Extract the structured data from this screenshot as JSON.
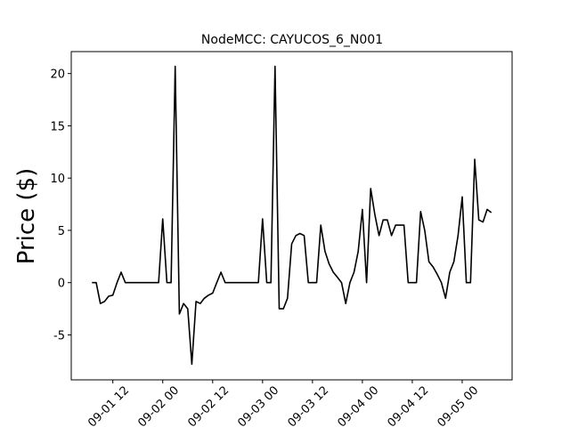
{
  "chart_data": {
    "type": "line",
    "title": "NodeMCC: CAYUCOS_6_N001",
    "y_label": "Price ($)",
    "x": [
      "09-01 07",
      "09-01 08",
      "09-01 09",
      "09-01 10",
      "09-01 11",
      "09-01 12",
      "09-01 13",
      "09-01 14",
      "09-01 15",
      "09-01 16",
      "09-01 17",
      "09-01 18",
      "09-01 19",
      "09-01 20",
      "09-01 21",
      "09-01 22",
      "09-01 23",
      "09-02 00",
      "09-02 01",
      "09-02 02",
      "09-02 03",
      "09-02 04",
      "09-02 05",
      "09-02 06",
      "09-02 07",
      "09-02 08",
      "09-02 09",
      "09-02 10",
      "09-02 11",
      "09-02 12",
      "09-02 13",
      "09-02 14",
      "09-02 15",
      "09-02 16",
      "09-02 17",
      "09-02 18",
      "09-02 19",
      "09-02 20",
      "09-02 21",
      "09-02 22",
      "09-02 23",
      "09-03 00",
      "09-03 01",
      "09-03 02",
      "09-03 03",
      "09-03 04",
      "09-03 05",
      "09-03 06",
      "09-03 07",
      "09-03 08",
      "09-03 09",
      "09-03 10",
      "09-03 11",
      "09-03 12",
      "09-03 13",
      "09-03 14",
      "09-03 15",
      "09-03 16",
      "09-03 17",
      "09-03 18",
      "09-03 19",
      "09-03 20",
      "09-03 21",
      "09-03 22",
      "09-03 23",
      "09-04 00",
      "09-04 01",
      "09-04 02",
      "09-04 03",
      "09-04 04",
      "09-04 05",
      "09-04 06",
      "09-04 07",
      "09-04 08",
      "09-04 09",
      "09-04 10",
      "09-04 11",
      "09-04 12",
      "09-04 13",
      "09-04 14",
      "09-04 15",
      "09-04 16",
      "09-04 17",
      "09-04 18",
      "09-04 19",
      "09-04 20",
      "09-04 21",
      "09-04 22",
      "09-04 23",
      "09-05 00",
      "09-05 01",
      "09-05 02",
      "09-05 03",
      "09-05 04",
      "09-05 05",
      "09-05 06",
      "09-05 07"
    ],
    "series": [
      {
        "color": "#000000",
        "values": [
          0,
          0,
          -2,
          -1.8,
          -1.3,
          -1.2,
          0,
          1,
          0,
          0,
          0,
          0,
          0,
          0,
          0,
          0,
          0,
          6.1,
          0,
          0,
          20.7,
          -3,
          -2,
          -2.5,
          -7.8,
          -1.8,
          -2,
          -1.5,
          -1.2,
          -1,
          0,
          1,
          0,
          0,
          0,
          0,
          0,
          0,
          0,
          0,
          0,
          6.1,
          0,
          0,
          20.7,
          -2.5,
          -2.5,
          -1.5,
          3.7,
          4.5,
          4.7,
          4.5,
          0,
          0,
          0,
          5.5,
          3,
          1.8,
          1,
          0.5,
          0,
          -2,
          0,
          1,
          3,
          7,
          0,
          9,
          6.5,
          4.5,
          6,
          6,
          4.5,
          5.5,
          5.5,
          5.5,
          0,
          0,
          0,
          6.8,
          5,
          2,
          1.5,
          0.8,
          0,
          -1.5,
          1,
          2,
          4.5,
          8.2,
          0,
          0,
          11.8,
          6,
          5.8,
          7,
          6.7
        ]
      }
    ],
    "xlim": [
      "09-01 02",
      "09-05 12"
    ],
    "xticks": [
      "09-01 12",
      "09-02 00",
      "09-02 12",
      "09-03 00",
      "09-03 12",
      "09-04 00",
      "09-04 12",
      "09-05 00"
    ],
    "ylim": [
      -9.3,
      22.1
    ],
    "yticks": [
      -5,
      0,
      5,
      10,
      15,
      20
    ]
  }
}
